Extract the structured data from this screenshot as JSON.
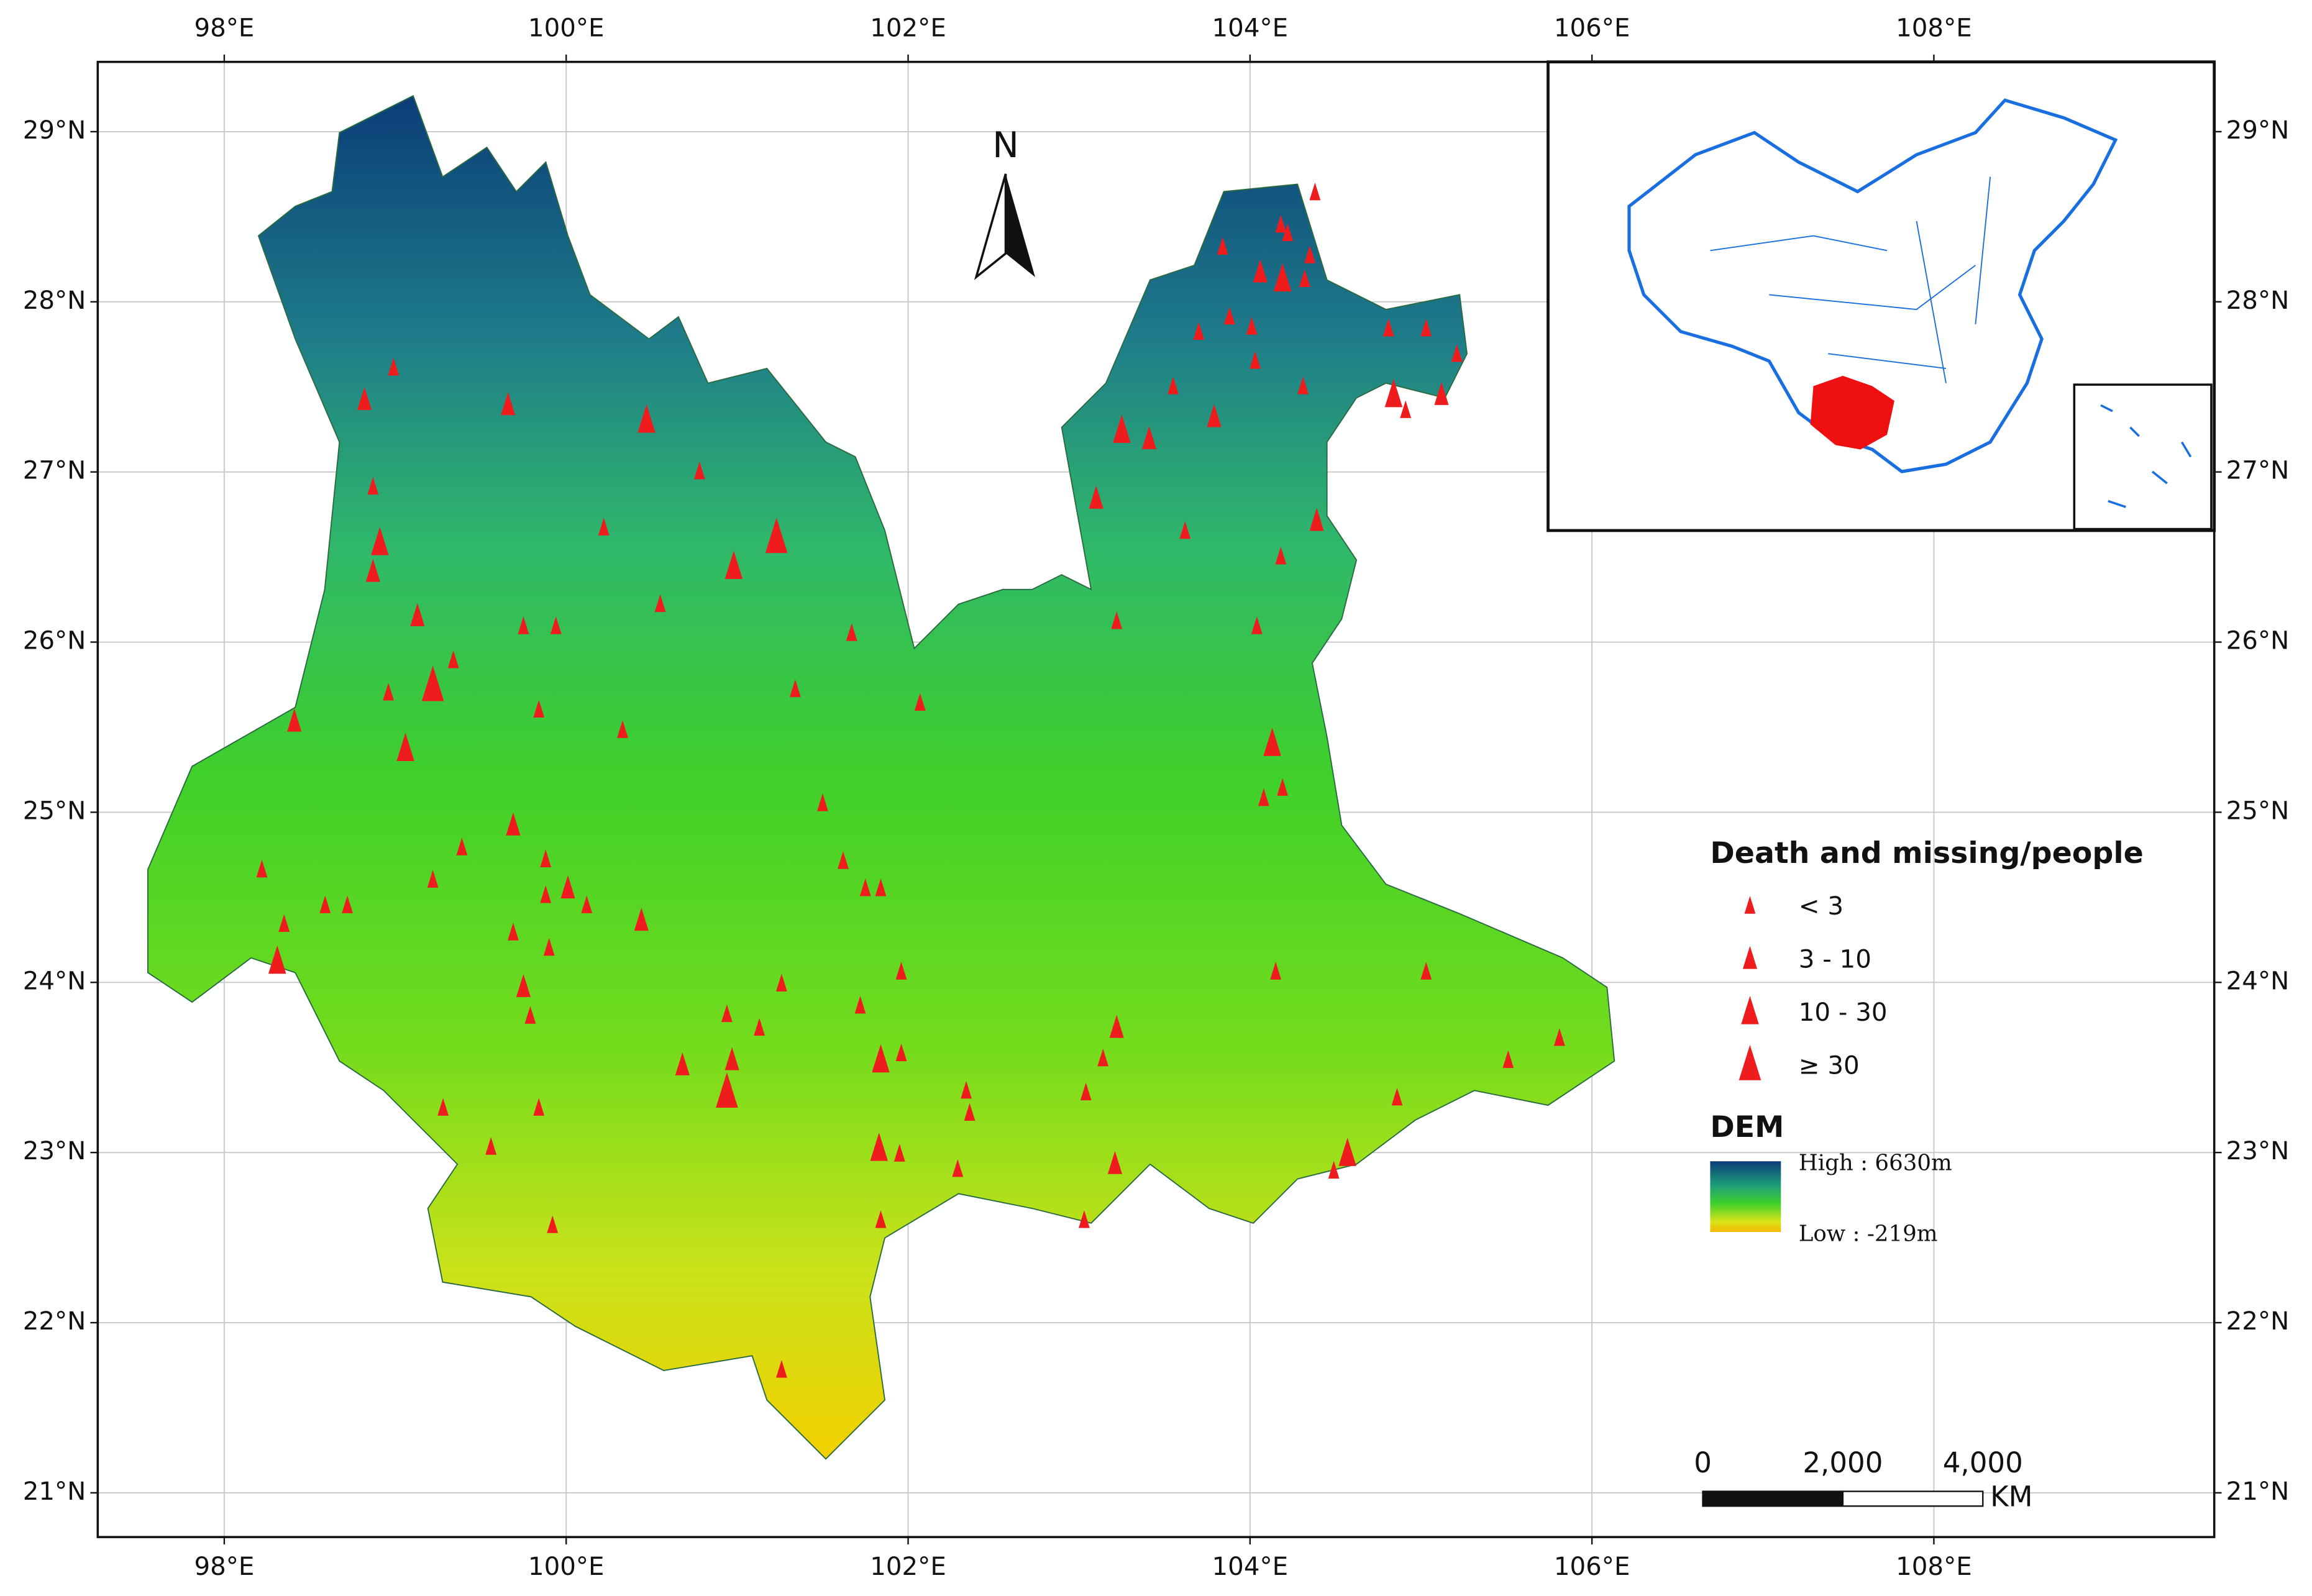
{
  "map": {
    "north": "N",
    "xlim": [
      97.26,
      109.64
    ],
    "ylim": [
      20.74,
      29.41
    ],
    "xticks": [
      {
        "value": 98,
        "label": "98°E"
      },
      {
        "value": 100,
        "label": "100°E"
      },
      {
        "value": 102,
        "label": "102°E"
      },
      {
        "value": 104,
        "label": "104°E"
      },
      {
        "value": 106,
        "label": "106°E"
      },
      {
        "value": 108,
        "label": "108°E"
      }
    ],
    "yticks": [
      {
        "value": 21,
        "label": "21°N"
      },
      {
        "value": 22,
        "label": "22°N"
      },
      {
        "value": 23,
        "label": "23°N"
      },
      {
        "value": 24,
        "label": "24°N"
      },
      {
        "value": 25,
        "label": "25°N"
      },
      {
        "value": 26,
        "label": "26°N"
      },
      {
        "value": 27,
        "label": "27°N"
      },
      {
        "value": 28,
        "label": "28°N"
      },
      {
        "value": 29,
        "label": "29°N"
      }
    ],
    "legend": {
      "title": "Death and missing/people",
      "levels": [
        "< 3",
        "3 - 10",
        "10 - 30",
        "≥ 30"
      ],
      "color": "#ee1c1c"
    },
    "dem": {
      "title": "DEM",
      "high": "High : 6630m",
      "low": "Low : -219m"
    },
    "scale_bar": {
      "ticks": [
        0,
        {
          "value": 2000,
          "label": "2,000"
        },
        {
          "value": 4000,
          "label": "4,000"
        }
      ],
      "unit": "KM"
    },
    "events": [
      {
        "lon": 98.82,
        "lat": 27.42,
        "level": 1
      },
      {
        "lon": 98.99,
        "lat": 27.61,
        "level": 0
      },
      {
        "lon": 98.87,
        "lat": 26.91,
        "level": 0
      },
      {
        "lon": 98.91,
        "lat": 26.58,
        "level": 2
      },
      {
        "lon": 98.87,
        "lat": 26.41,
        "level": 1
      },
      {
        "lon": 99.13,
        "lat": 26.15,
        "level": 1
      },
      {
        "lon": 99.22,
        "lat": 25.74,
        "level": 3
      },
      {
        "lon": 99.34,
        "lat": 25.89,
        "level": 0
      },
      {
        "lon": 99.06,
        "lat": 25.37,
        "level": 2
      },
      {
        "lon": 98.96,
        "lat": 25.7,
        "level": 0
      },
      {
        "lon": 98.41,
        "lat": 25.53,
        "level": 1
      },
      {
        "lon": 99.66,
        "lat": 27.39,
        "level": 1
      },
      {
        "lon": 100.47,
        "lat": 27.3,
        "level": 2
      },
      {
        "lon": 100.78,
        "lat": 27.0,
        "level": 0
      },
      {
        "lon": 100.22,
        "lat": 26.67,
        "level": 0
      },
      {
        "lon": 101.23,
        "lat": 26.61,
        "level": 3
      },
      {
        "lon": 100.98,
        "lat": 26.44,
        "level": 2
      },
      {
        "lon": 100.55,
        "lat": 26.22,
        "level": 0
      },
      {
        "lon": 99.75,
        "lat": 26.09,
        "level": 0
      },
      {
        "lon": 99.94,
        "lat": 26.09,
        "level": 0
      },
      {
        "lon": 99.84,
        "lat": 25.6,
        "level": 0
      },
      {
        "lon": 100.33,
        "lat": 25.48,
        "level": 0
      },
      {
        "lon": 101.34,
        "lat": 25.72,
        "level": 0
      },
      {
        "lon": 101.67,
        "lat": 26.05,
        "level": 0
      },
      {
        "lon": 102.07,
        "lat": 25.64,
        "level": 0
      },
      {
        "lon": 101.5,
        "lat": 25.05,
        "level": 0
      },
      {
        "lon": 101.62,
        "lat": 24.71,
        "level": 0
      },
      {
        "lon": 101.75,
        "lat": 24.55,
        "level": 0
      },
      {
        "lon": 101.84,
        "lat": 24.55,
        "level": 0
      },
      {
        "lon": 101.96,
        "lat": 24.06,
        "level": 0
      },
      {
        "lon": 101.26,
        "lat": 23.99,
        "level": 0
      },
      {
        "lon": 101.72,
        "lat": 23.86,
        "level": 0
      },
      {
        "lon": 101.84,
        "lat": 23.54,
        "level": 2
      },
      {
        "lon": 101.96,
        "lat": 23.58,
        "level": 0
      },
      {
        "lon": 101.13,
        "lat": 23.73,
        "level": 0
      },
      {
        "lon": 100.94,
        "lat": 23.81,
        "level": 0
      },
      {
        "lon": 100.97,
        "lat": 23.54,
        "level": 1
      },
      {
        "lon": 100.94,
        "lat": 23.35,
        "level": 3
      },
      {
        "lon": 100.68,
        "lat": 23.51,
        "level": 1
      },
      {
        "lon": 99.69,
        "lat": 24.92,
        "level": 1
      },
      {
        "lon": 99.39,
        "lat": 24.79,
        "level": 0
      },
      {
        "lon": 99.22,
        "lat": 24.6,
        "level": 0
      },
      {
        "lon": 99.88,
        "lat": 24.72,
        "level": 0
      },
      {
        "lon": 99.88,
        "lat": 24.51,
        "level": 0
      },
      {
        "lon": 100.01,
        "lat": 24.55,
        "level": 1
      },
      {
        "lon": 100.12,
        "lat": 24.45,
        "level": 0
      },
      {
        "lon": 100.44,
        "lat": 24.36,
        "level": 1
      },
      {
        "lon": 99.69,
        "lat": 24.29,
        "level": 0
      },
      {
        "lon": 99.9,
        "lat": 24.2,
        "level": 0
      },
      {
        "lon": 99.75,
        "lat": 23.97,
        "level": 1
      },
      {
        "lon": 99.79,
        "lat": 23.8,
        "level": 0
      },
      {
        "lon": 99.84,
        "lat": 23.26,
        "level": 0
      },
      {
        "lon": 99.28,
        "lat": 23.26,
        "level": 0
      },
      {
        "lon": 99.56,
        "lat": 23.03,
        "level": 0
      },
      {
        "lon": 99.92,
        "lat": 22.57,
        "level": 0
      },
      {
        "lon": 98.22,
        "lat": 24.66,
        "level": 0
      },
      {
        "lon": 98.35,
        "lat": 24.34,
        "level": 0
      },
      {
        "lon": 98.59,
        "lat": 24.45,
        "level": 0
      },
      {
        "lon": 98.72,
        "lat": 24.45,
        "level": 0
      },
      {
        "lon": 98.31,
        "lat": 24.12,
        "level": 2
      },
      {
        "lon": 101.26,
        "lat": 21.72,
        "level": 0
      },
      {
        "lon": 101.83,
        "lat": 23.02,
        "level": 2
      },
      {
        "lon": 101.95,
        "lat": 22.99,
        "level": 0
      },
      {
        "lon": 101.84,
        "lat": 22.6,
        "level": 0
      },
      {
        "lon": 102.29,
        "lat": 22.9,
        "level": 0
      },
      {
        "lon": 102.36,
        "lat": 23.23,
        "level": 0
      },
      {
        "lon": 102.34,
        "lat": 23.36,
        "level": 0
      },
      {
        "lon": 103.03,
        "lat": 22.6,
        "level": 0
      },
      {
        "lon": 103.21,
        "lat": 22.93,
        "level": 1
      },
      {
        "lon": 103.04,
        "lat": 23.35,
        "level": 0
      },
      {
        "lon": 103.14,
        "lat": 23.55,
        "level": 0
      },
      {
        "lon": 103.22,
        "lat": 23.73,
        "level": 1
      },
      {
        "lon": 103.22,
        "lat": 26.12,
        "level": 0
      },
      {
        "lon": 103.1,
        "lat": 26.84,
        "level": 1
      },
      {
        "lon": 103.25,
        "lat": 27.24,
        "level": 2
      },
      {
        "lon": 103.41,
        "lat": 27.19,
        "level": 1
      },
      {
        "lon": 103.55,
        "lat": 27.5,
        "level": 0
      },
      {
        "lon": 103.62,
        "lat": 26.65,
        "level": 0
      },
      {
        "lon": 103.79,
        "lat": 27.32,
        "level": 1
      },
      {
        "lon": 103.7,
        "lat": 27.82,
        "level": 0
      },
      {
        "lon": 103.88,
        "lat": 27.91,
        "level": 0
      },
      {
        "lon": 104.01,
        "lat": 27.85,
        "level": 0
      },
      {
        "lon": 104.03,
        "lat": 27.65,
        "level": 0
      },
      {
        "lon": 103.84,
        "lat": 28.32,
        "level": 0
      },
      {
        "lon": 104.06,
        "lat": 28.17,
        "level": 1
      },
      {
        "lon": 104.19,
        "lat": 28.13,
        "level": 2
      },
      {
        "lon": 104.22,
        "lat": 28.4,
        "level": 0
      },
      {
        "lon": 104.35,
        "lat": 28.27,
        "level": 0
      },
      {
        "lon": 104.38,
        "lat": 28.64,
        "level": 0
      },
      {
        "lon": 104.32,
        "lat": 28.13,
        "level": 0
      },
      {
        "lon": 104.18,
        "lat": 28.45,
        "level": 0
      },
      {
        "lon": 104.31,
        "lat": 27.5,
        "level": 0
      },
      {
        "lon": 104.18,
        "lat": 26.5,
        "level": 0
      },
      {
        "lon": 104.39,
        "lat": 26.71,
        "level": 1
      },
      {
        "lon": 104.04,
        "lat": 26.09,
        "level": 0
      },
      {
        "lon": 104.13,
        "lat": 25.4,
        "level": 2
      },
      {
        "lon": 104.19,
        "lat": 25.14,
        "level": 0
      },
      {
        "lon": 104.08,
        "lat": 25.08,
        "level": 0
      },
      {
        "lon": 104.15,
        "lat": 24.06,
        "level": 0
      },
      {
        "lon": 104.81,
        "lat": 27.84,
        "level": 0
      },
      {
        "lon": 105.03,
        "lat": 27.84,
        "level": 0
      },
      {
        "lon": 104.84,
        "lat": 27.45,
        "level": 2
      },
      {
        "lon": 104.91,
        "lat": 27.36,
        "level": 0
      },
      {
        "lon": 105.12,
        "lat": 27.45,
        "level": 1
      },
      {
        "lon": 105.21,
        "lat": 27.69,
        "level": 0
      },
      {
        "lon": 105.03,
        "lat": 24.06,
        "level": 0
      },
      {
        "lon": 104.86,
        "lat": 23.32,
        "level": 0
      },
      {
        "lon": 104.57,
        "lat": 22.99,
        "level": 2
      },
      {
        "lon": 104.49,
        "lat": 22.89,
        "level": 0
      },
      {
        "lon": 105.51,
        "lat": 23.54,
        "level": 0
      },
      {
        "lon": 105.81,
        "lat": 23.67,
        "level": 0
      }
    ]
  }
}
